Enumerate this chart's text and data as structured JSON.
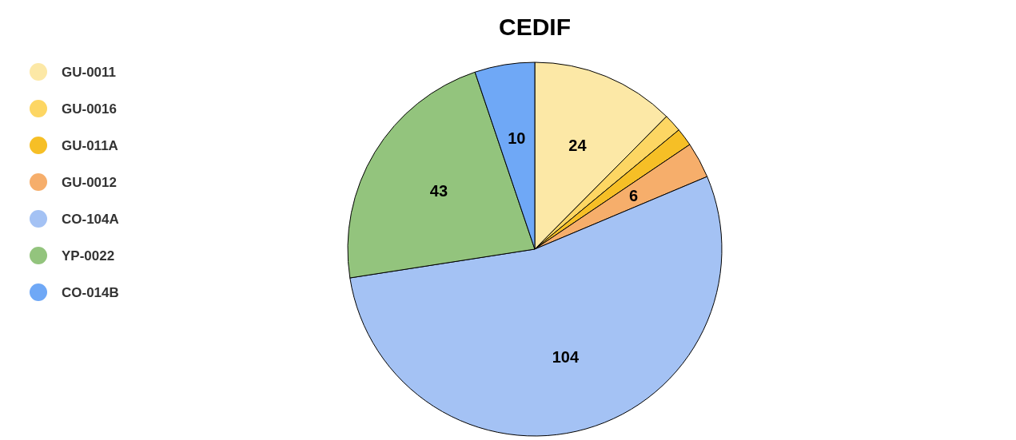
{
  "chart_data": {
    "type": "pie",
    "title": "CEDIF",
    "categories": [
      "GU-0011",
      "GU-0016",
      "GU-011A",
      "GU-0012",
      "CO-104A",
      "YP-0022",
      "CO-014B"
    ],
    "values": [
      24,
      3,
      3,
      6,
      104,
      43,
      10
    ],
    "value_labels": [
      "24",
      null,
      null,
      "6",
      "104",
      "43",
      "10"
    ],
    "colors": [
      "#fce8a6",
      "#fdd663",
      "#f6bf26",
      "#f6ae6b",
      "#a4c2f4",
      "#93c47d",
      "#6fa8f6"
    ],
    "legend": "top left"
  }
}
